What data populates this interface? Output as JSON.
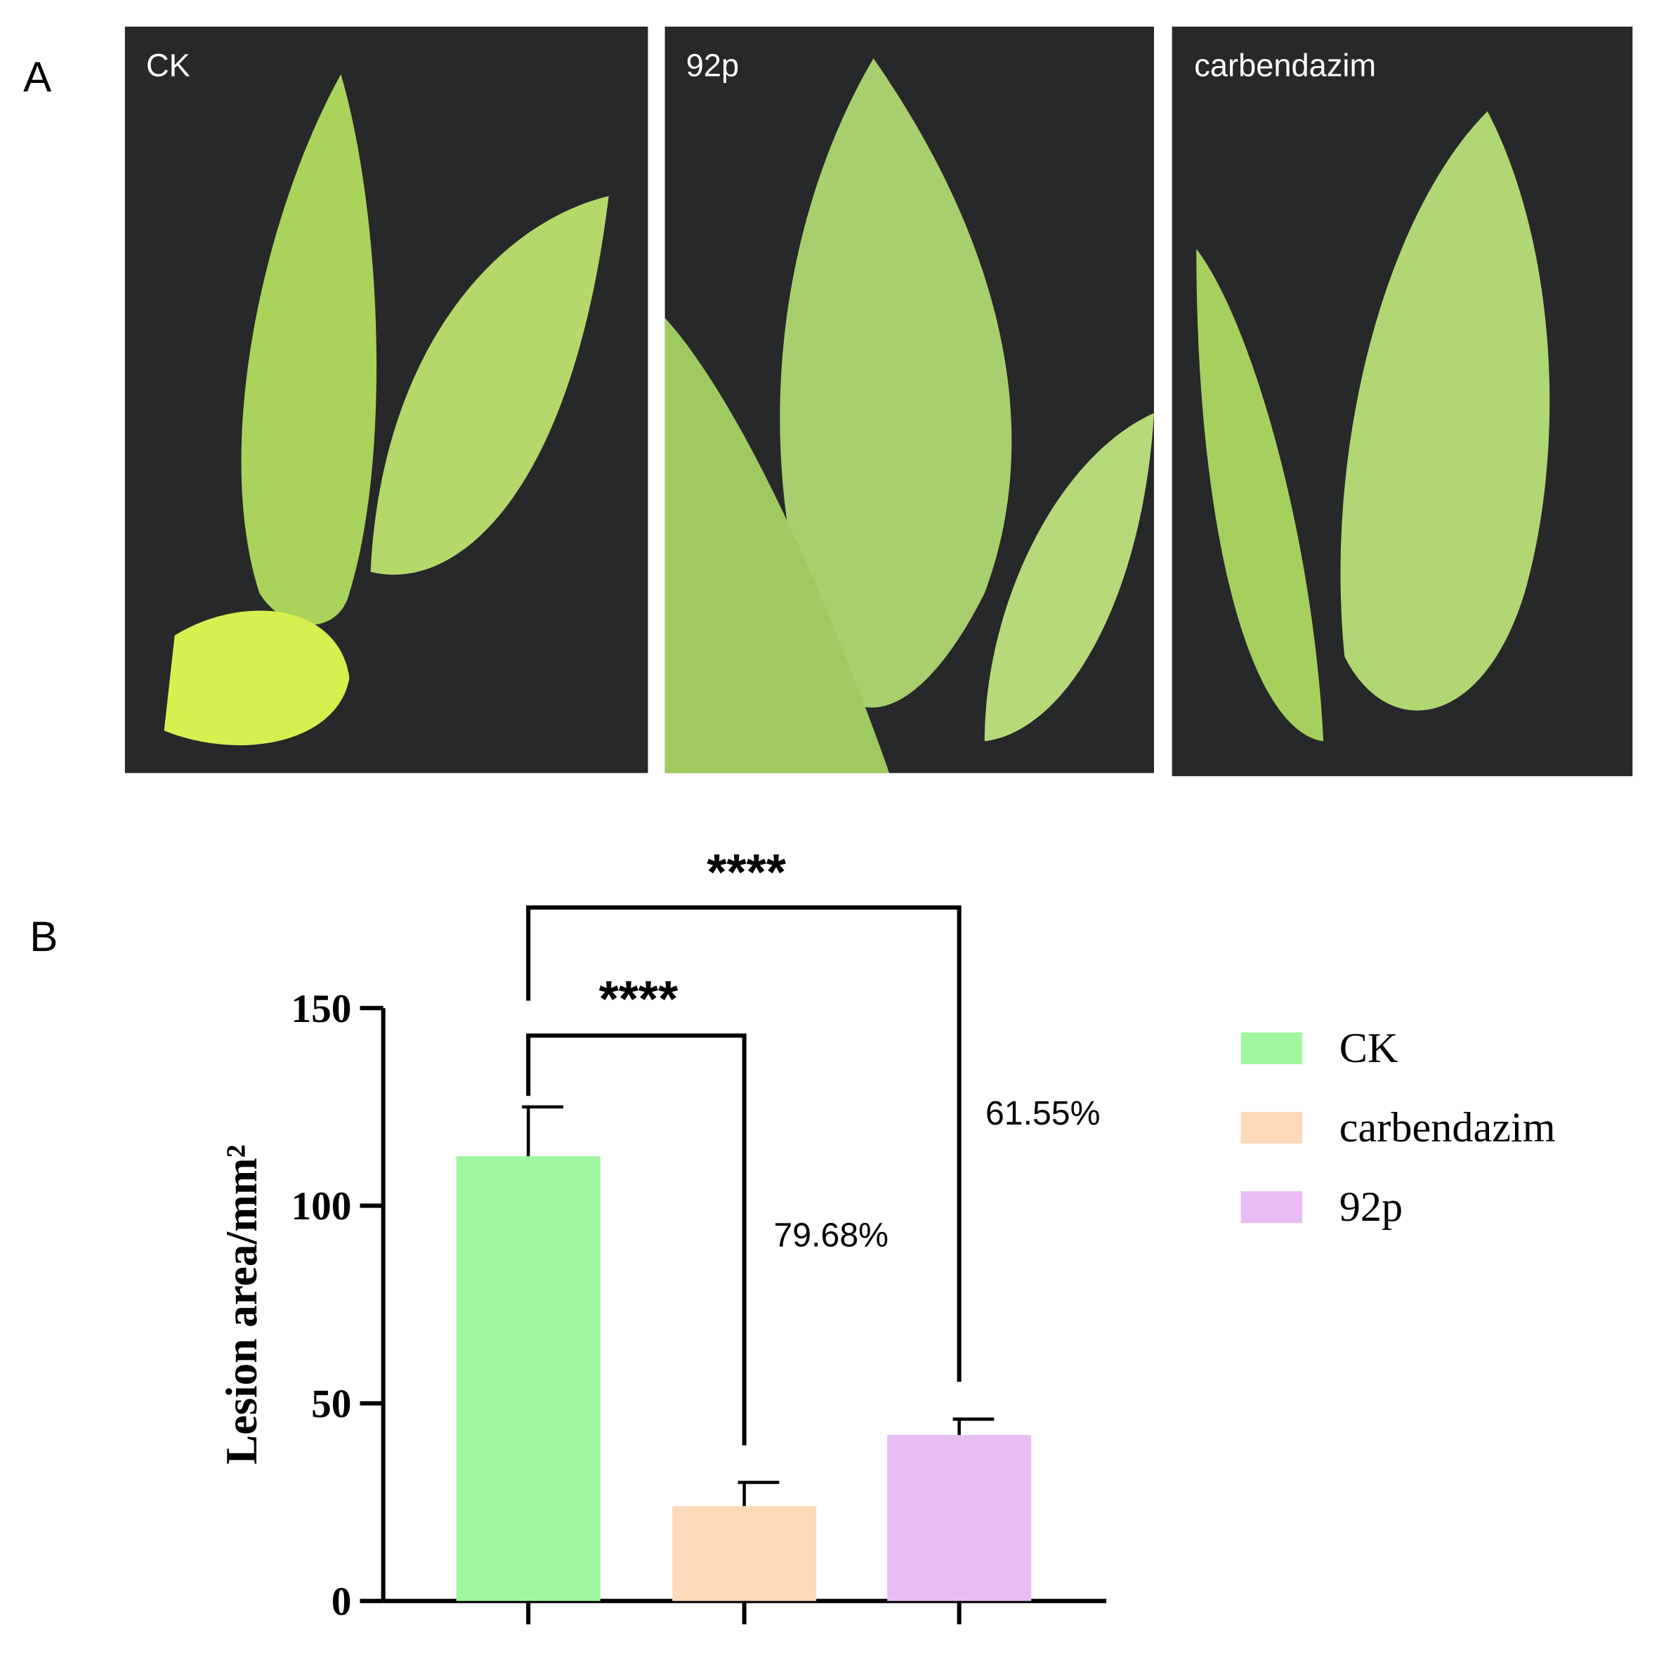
{
  "panel_a": {
    "label": "A",
    "photos": [
      "CK",
      "92p",
      "carbendazim"
    ]
  },
  "panel_b": {
    "label": "B"
  },
  "chart_data": {
    "type": "bar",
    "y_label": "Lesion area/mm²",
    "categories": [
      "CK",
      "carbendazim",
      "92p"
    ],
    "values": [
      112.5,
      24,
      42
    ],
    "errors": [
      12.5,
      6,
      4
    ],
    "colors": [
      "#a0f7a0",
      "#fcd9b8",
      "#e8bdf5"
    ],
    "ylim": [
      0,
      150
    ],
    "yticks": [
      0,
      50,
      100,
      150
    ],
    "annotations": [
      "****",
      "****",
      "79.68%",
      "61.55%"
    ],
    "legend": "right"
  }
}
